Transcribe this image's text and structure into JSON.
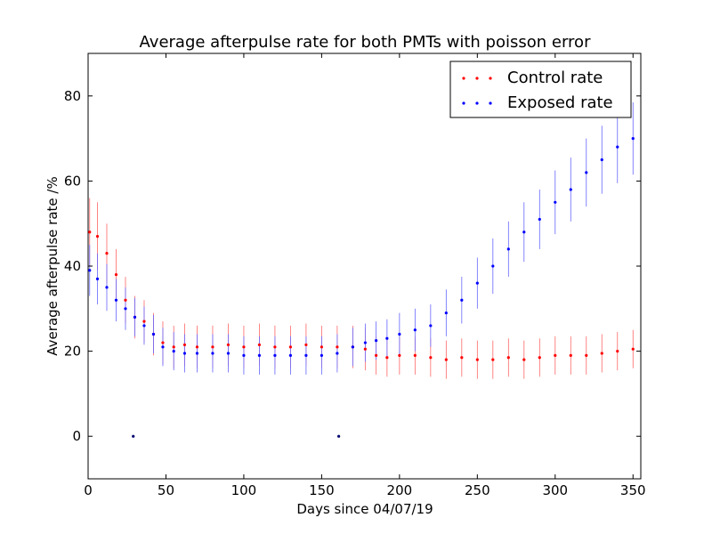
{
  "chart_data": {
    "type": "scatter",
    "title": "Average afterpulse rate for both PMTs with poisson error",
    "xlabel": "Days since 04/07/19",
    "ylabel": "Average afterpulse rate /%",
    "xlim": [
      0,
      355
    ],
    "ylim": [
      -10,
      90
    ],
    "xticks": [
      0,
      50,
      100,
      150,
      200,
      250,
      300,
      350
    ],
    "yticks": [
      0,
      20,
      40,
      60,
      80
    ],
    "legend_position": "top-right",
    "grid": false,
    "series": [
      {
        "name": "Control rate",
        "color": "#ff0000",
        "error_color": "#ff6666",
        "x": [
          1,
          6,
          12,
          18,
          24,
          30,
          36,
          42,
          48,
          55,
          62,
          70,
          80,
          90,
          100,
          110,
          120,
          130,
          140,
          150,
          160,
          170,
          178,
          185,
          192,
          200,
          210,
          220,
          230,
          240,
          250,
          260,
          270,
          280,
          290,
          300,
          310,
          320,
          330,
          340,
          350
        ],
        "y": [
          48,
          47,
          43,
          38,
          32,
          28,
          27,
          24,
          22,
          21,
          21.5,
          21,
          21,
          21.5,
          21,
          21.5,
          21,
          21,
          21.5,
          21,
          21,
          21,
          20.5,
          19,
          18.5,
          19,
          19,
          18.5,
          18,
          18.5,
          18,
          18,
          18.5,
          18,
          18.5,
          19,
          19,
          19,
          19.5,
          20,
          20.5
        ],
        "err": [
          8,
          8,
          7,
          6,
          5.5,
          5,
          5,
          5,
          5,
          5,
          5,
          5,
          5,
          5,
          5,
          5,
          5,
          5,
          5,
          5,
          5,
          5,
          5,
          4.5,
          4.5,
          4.5,
          4.5,
          4.5,
          4.5,
          4.5,
          4.5,
          4.5,
          4.5,
          4.5,
          4.5,
          4.5,
          4.5,
          4.5,
          4.5,
          4.5,
          4.5
        ]
      },
      {
        "name": "Exposed rate",
        "color": "#0000ff",
        "error_color": "#6666ff",
        "x": [
          1,
          6,
          12,
          18,
          24,
          30,
          36,
          42,
          48,
          55,
          62,
          70,
          80,
          90,
          100,
          110,
          120,
          130,
          140,
          150,
          160,
          170,
          178,
          185,
          192,
          200,
          210,
          220,
          230,
          240,
          250,
          260,
          270,
          280,
          290,
          300,
          310,
          320,
          330,
          340,
          350
        ],
        "y": [
          39,
          37,
          35,
          32,
          30,
          28,
          26,
          24,
          21,
          20,
          19.5,
          19.5,
          19.5,
          19.5,
          19,
          19,
          19,
          19,
          19,
          19,
          19.5,
          21,
          22,
          22.5,
          23,
          24,
          25,
          26,
          29,
          32,
          36,
          40,
          44,
          48,
          51,
          55,
          58,
          62,
          65,
          68,
          70
        ],
        "err": [
          6,
          6,
          5.5,
          5,
          5,
          4.5,
          4.5,
          4.5,
          4.5,
          4.5,
          4.5,
          4.5,
          4.5,
          4.5,
          4.5,
          4.5,
          4.5,
          4.5,
          4.5,
          4.5,
          4.5,
          4.5,
          4.5,
          4.5,
          4.5,
          5,
          5,
          5,
          5.5,
          5.5,
          6,
          6.5,
          6.5,
          7,
          7,
          7.5,
          7.5,
          8,
          8,
          8.5,
          8.5
        ]
      }
    ],
    "outliers": [
      {
        "x": 29,
        "y": 0
      },
      {
        "x": 161,
        "y": 0
      }
    ]
  }
}
